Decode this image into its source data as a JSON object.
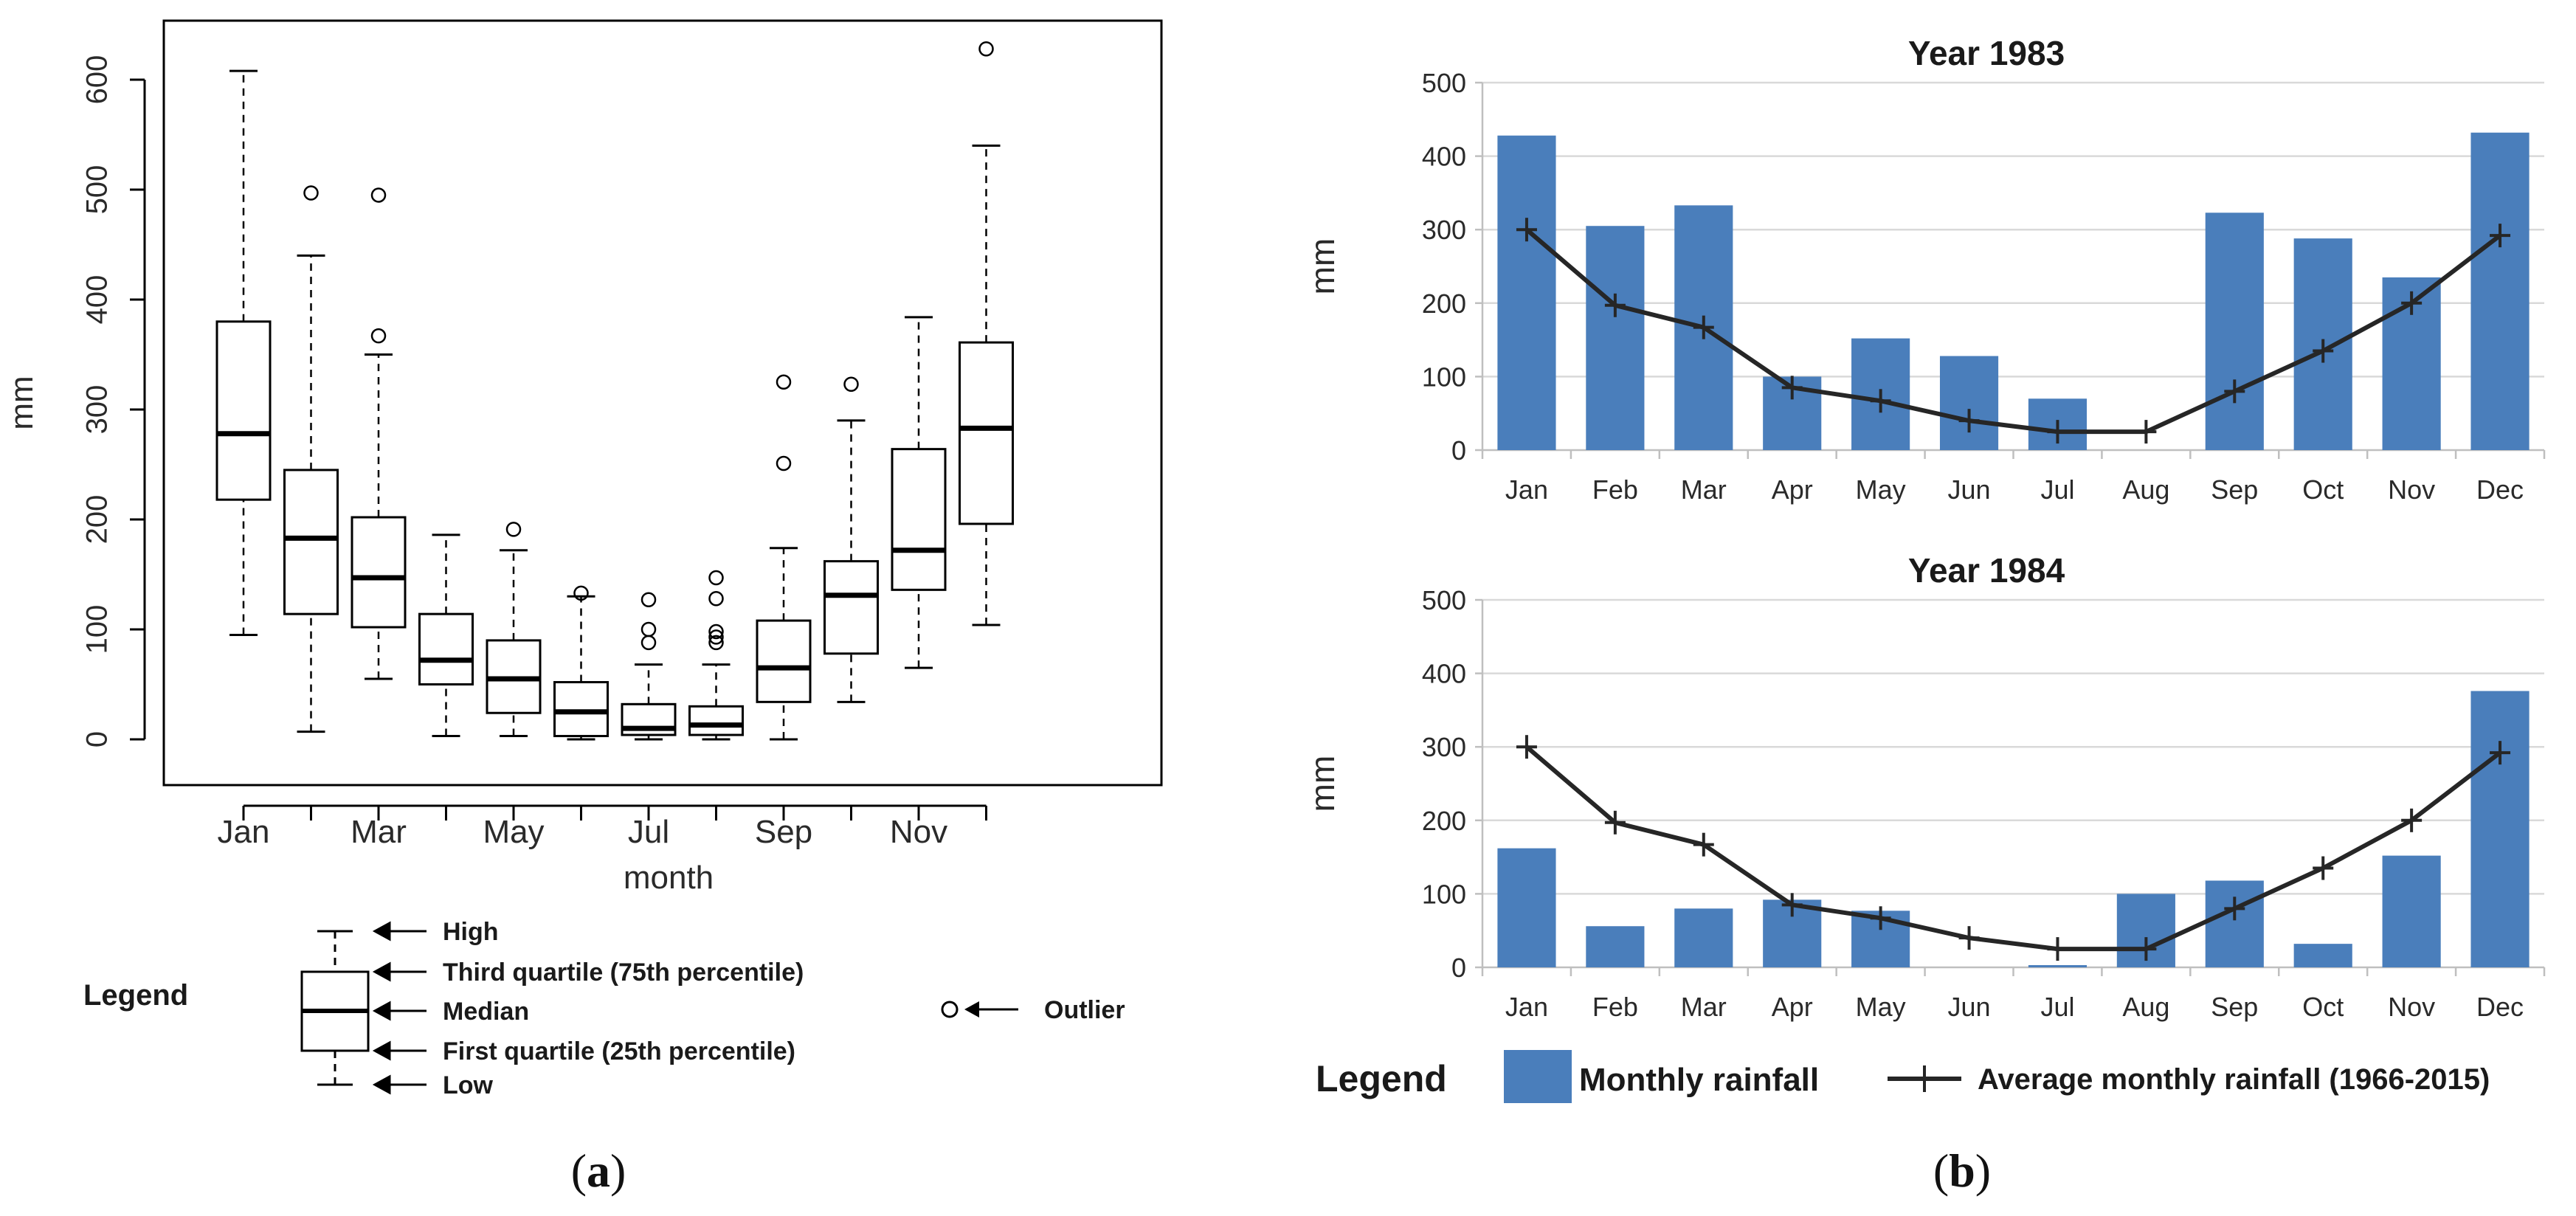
{
  "panel_a": {
    "caption_open": "(",
    "caption_letter": "a",
    "caption_close": ")",
    "ylabel": "mm",
    "xlabel": "month",
    "legend_title": "Legend",
    "legend_labels": {
      "high": "High",
      "q3": "Third quartile (75th percentile)",
      "median": "Median",
      "q1": "First quartile (25th percentile)",
      "low": "Low",
      "outlier": "Outlier"
    }
  },
  "panel_b": {
    "caption_open": "(",
    "caption_letter": "b",
    "caption_close": ")",
    "legend_title": "Legend",
    "legend_bar_label": "Monthly rainfall",
    "legend_line_label": "Average monthly rainfall (1966-2015)"
  },
  "colors": {
    "bar_fill": "#4a7ebb",
    "line": "#262626",
    "grid": "#d9d9d9",
    "box_stroke": "#000000"
  },
  "chart_data": [
    {
      "type": "boxplot",
      "xlabel": "month",
      "ylabel": "mm",
      "ylim": [
        0,
        640
      ],
      "yticks": [
        0,
        100,
        200,
        300,
        400,
        500,
        600
      ],
      "tick_labels": [
        "Jan",
        "Mar",
        "May",
        "Jul",
        "Sep",
        "Nov"
      ],
      "categories": [
        "Jan",
        "Feb",
        "Mar",
        "Apr",
        "May",
        "Jun",
        "Jul",
        "Aug",
        "Sep",
        "Oct",
        "Nov",
        "Dec"
      ],
      "boxes": [
        {
          "low": 95,
          "q1": 218,
          "median": 278,
          "q3": 380,
          "high": 608,
          "outliers": []
        },
        {
          "low": 7,
          "q1": 114,
          "median": 183,
          "q3": 245,
          "high": 440,
          "outliers": [
            497
          ]
        },
        {
          "low": 55,
          "q1": 102,
          "median": 147,
          "q3": 202,
          "high": 350,
          "outliers": [
            367,
            495
          ]
        },
        {
          "low": 3,
          "q1": 50,
          "median": 72,
          "q3": 114,
          "high": 186,
          "outliers": []
        },
        {
          "low": 3,
          "q1": 24,
          "median": 55,
          "q3": 90,
          "high": 172,
          "outliers": [
            191
          ]
        },
        {
          "low": 0,
          "q1": 3,
          "median": 25,
          "q3": 52,
          "high": 130,
          "outliers": [
            133
          ]
        },
        {
          "low": 0,
          "q1": 4,
          "median": 10,
          "q3": 32,
          "high": 68,
          "outliers": [
            88,
            100,
            127
          ]
        },
        {
          "low": 0,
          "q1": 4,
          "median": 13,
          "q3": 30,
          "high": 68,
          "outliers": [
            88,
            93,
            98,
            128,
            147
          ]
        },
        {
          "low": 0,
          "q1": 34,
          "median": 65,
          "q3": 108,
          "high": 174,
          "outliers": [
            251,
            325
          ]
        },
        {
          "low": 34,
          "q1": 78,
          "median": 131,
          "q3": 162,
          "high": 290,
          "outliers": [
            323
          ]
        },
        {
          "low": 65,
          "q1": 136,
          "median": 172,
          "q3": 264,
          "high": 384,
          "outliers": []
        },
        {
          "low": 104,
          "q1": 196,
          "median": 283,
          "q3": 361,
          "high": 540,
          "outliers": [
            628
          ]
        }
      ]
    },
    {
      "type": "bar",
      "title": "Year 1983",
      "ylabel": "mm",
      "ylim": [
        0,
        500
      ],
      "yticks": [
        0,
        100,
        200,
        300,
        400,
        500
      ],
      "categories": [
        "Jan",
        "Feb",
        "Mar",
        "Apr",
        "May",
        "Jun",
        "Jul",
        "Aug",
        "Sep",
        "Oct",
        "Nov",
        "Dec"
      ],
      "series": [
        {
          "name": "Monthly rainfall",
          "type": "bar",
          "values": [
            428,
            305,
            333,
            100,
            152,
            128,
            70,
            0,
            323,
            288,
            235,
            432
          ]
        },
        {
          "name": "Average monthly rainfall (1966-2015)",
          "type": "line",
          "values": [
            300,
            197,
            167,
            85,
            67,
            40,
            25,
            25,
            80,
            135,
            200,
            292
          ]
        }
      ]
    },
    {
      "type": "bar",
      "title": "Year 1984",
      "ylabel": "mm",
      "ylim": [
        0,
        500
      ],
      "yticks": [
        0,
        100,
        200,
        300,
        400,
        500
      ],
      "categories": [
        "Jan",
        "Feb",
        "Mar",
        "Apr",
        "May",
        "Jun",
        "Jul",
        "Aug",
        "Sep",
        "Oct",
        "Nov",
        "Dec"
      ],
      "series": [
        {
          "name": "Monthly rainfall",
          "type": "bar",
          "values": [
            162,
            56,
            80,
            92,
            77,
            0,
            3,
            100,
            118,
            32,
            152,
            376
          ]
        },
        {
          "name": "Average monthly rainfall (1966-2015)",
          "type": "line",
          "values": [
            300,
            197,
            167,
            85,
            67,
            40,
            25,
            25,
            80,
            135,
            200,
            292
          ]
        }
      ]
    }
  ]
}
